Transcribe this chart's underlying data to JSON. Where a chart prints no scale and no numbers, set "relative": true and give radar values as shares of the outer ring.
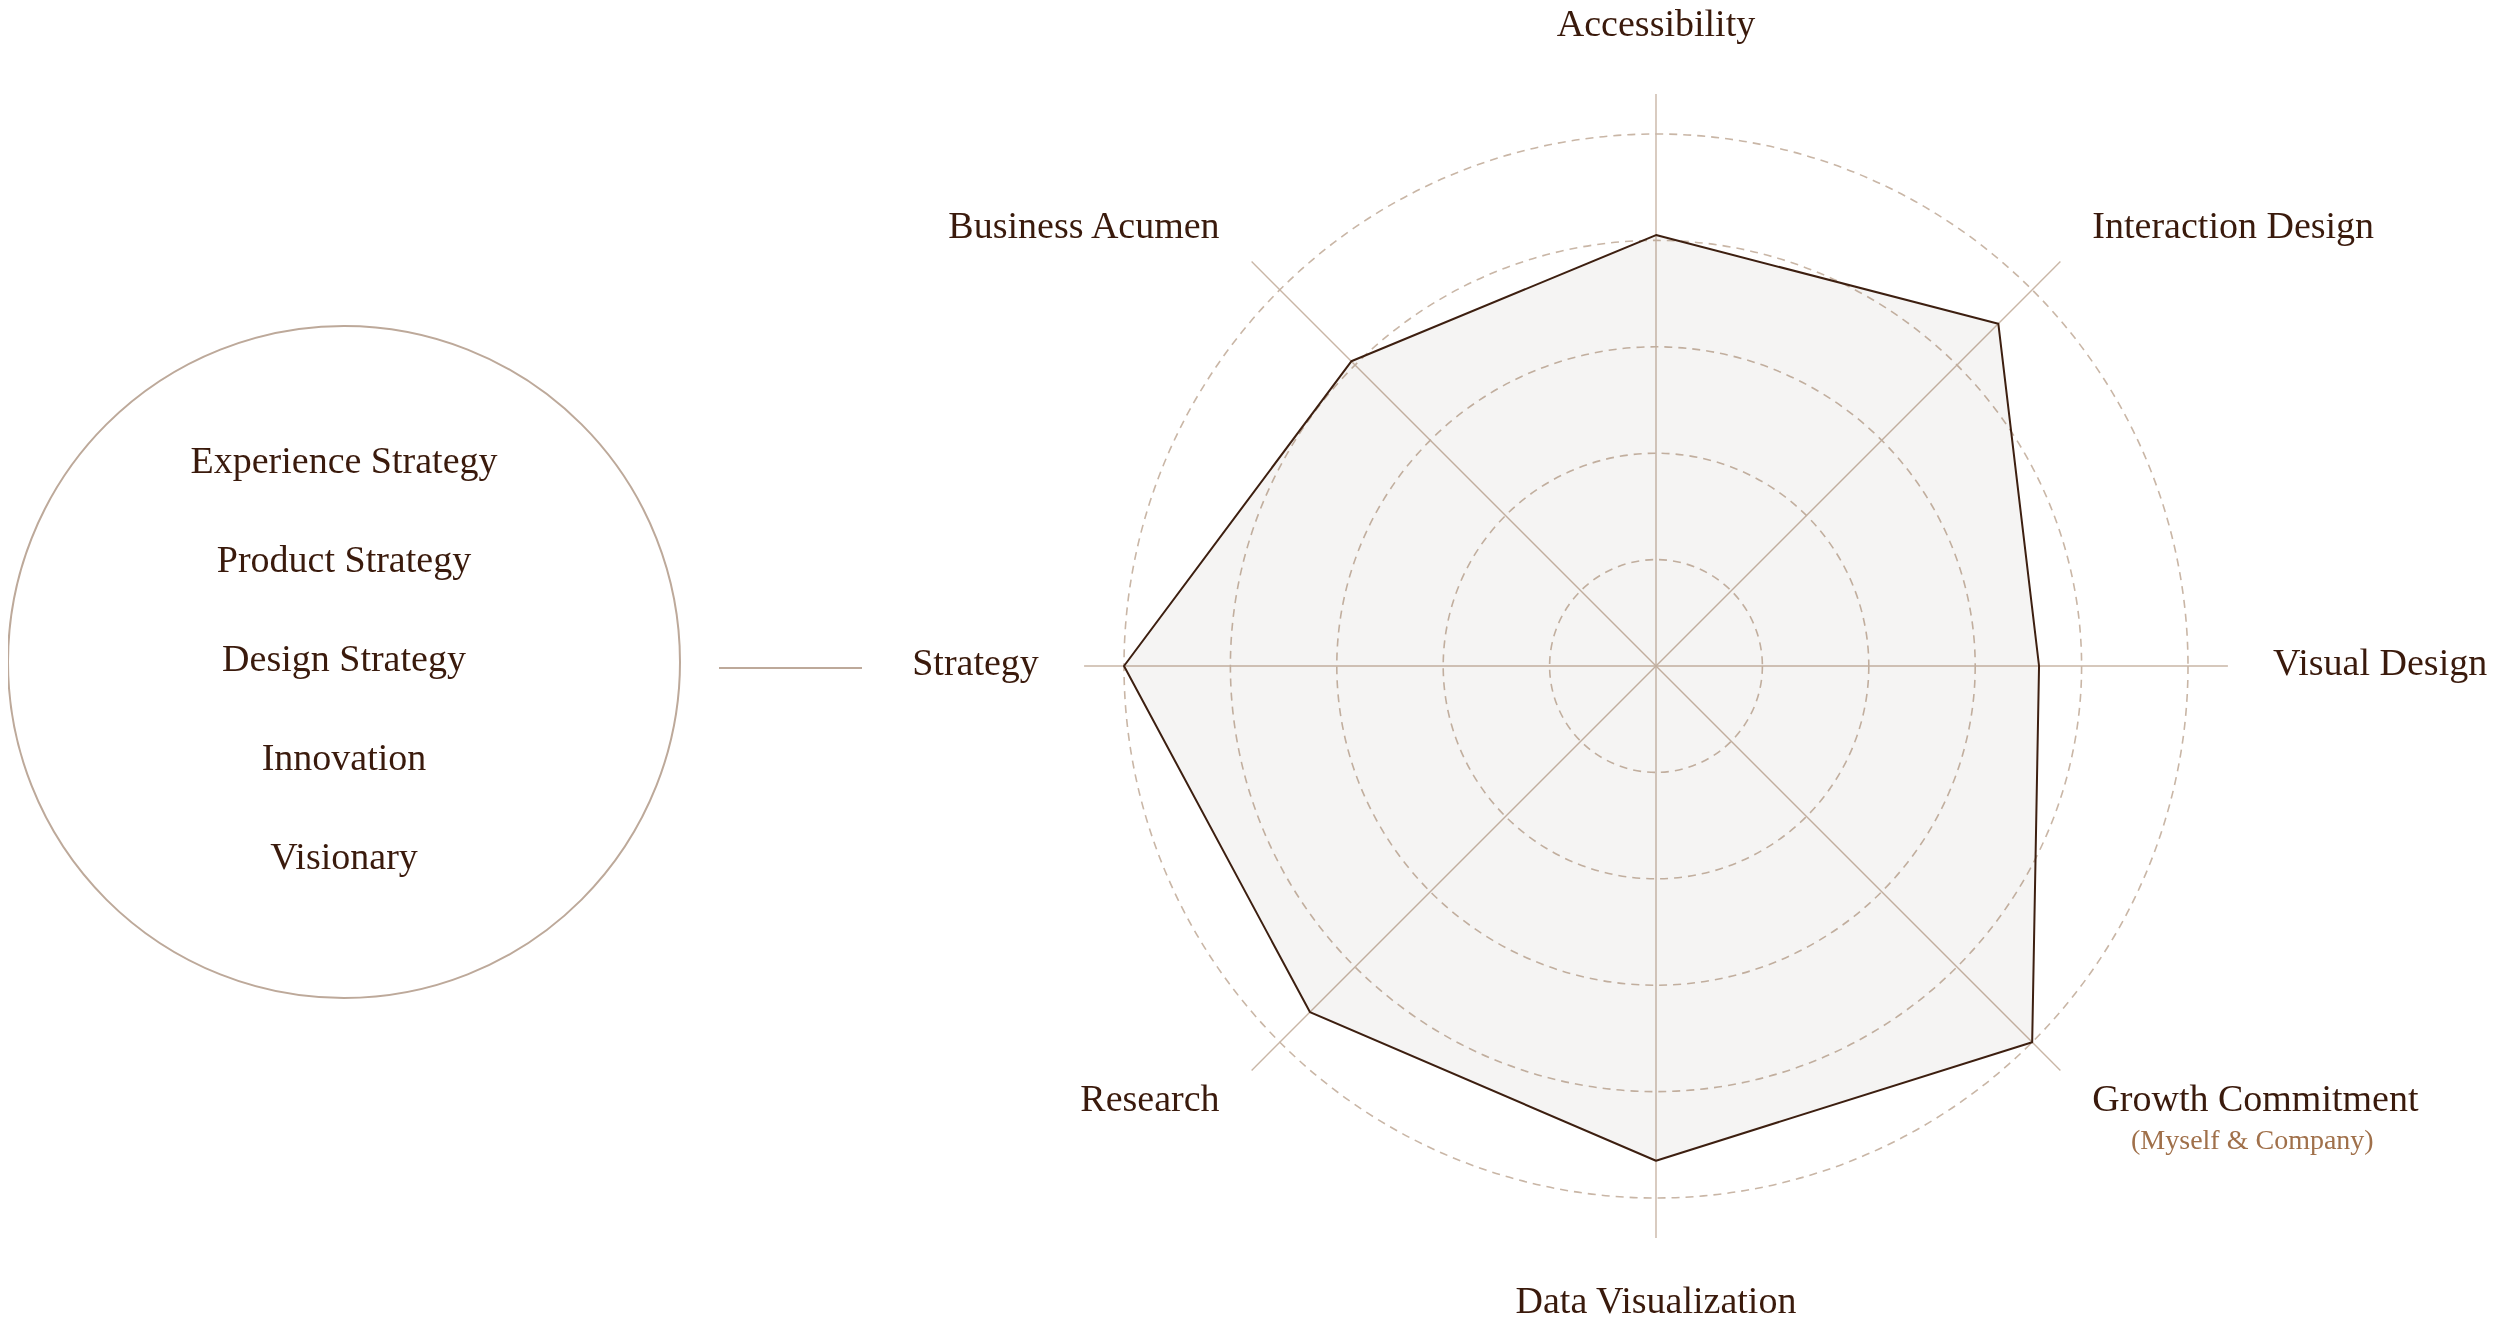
{
  "chart_data": {
    "type": "radar",
    "relative": true,
    "grid": true,
    "categories": [
      "Accessibility",
      "Interaction Design",
      "Visual Design",
      "Growth Commitment",
      "Data Visualization",
      "Research",
      "Strategy",
      "Business Acumen"
    ],
    "series": [
      {
        "color": "#3d1f10",
        "values": [
          0.81,
          0.91,
          0.72,
          1.0,
          0.93,
          0.92,
          1.0,
          0.81
        ]
      }
    ],
    "annotations": [
      "Experience Strategy",
      "Product Strategy",
      "Design Strategy",
      "Innovation",
      "Visionary",
      {
        "text": "(Myself & Company)",
        "x": "Growth Commitment"
      }
    ]
  }
}
